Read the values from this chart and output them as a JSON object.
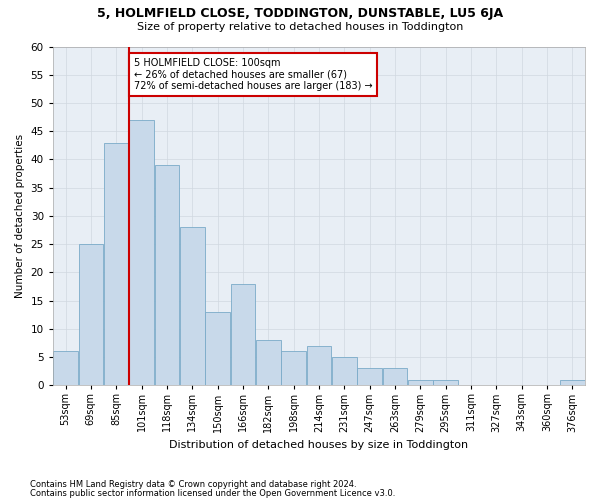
{
  "title": "5, HOLMFIELD CLOSE, TODDINGTON, DUNSTABLE, LU5 6JA",
  "subtitle": "Size of property relative to detached houses in Toddington",
  "xlabel": "Distribution of detached houses by size in Toddington",
  "ylabel": "Number of detached properties",
  "bar_values": [
    6,
    25,
    43,
    47,
    39,
    28,
    13,
    18,
    8,
    6,
    7,
    5,
    3,
    3,
    1,
    1,
    0,
    0,
    0,
    0,
    1
  ],
  "x_labels": [
    "53sqm",
    "69sqm",
    "85sqm",
    "101sqm",
    "118sqm",
    "134sqm",
    "150sqm",
    "166sqm",
    "182sqm",
    "198sqm",
    "214sqm",
    "231sqm",
    "247sqm",
    "263sqm",
    "279sqm",
    "295sqm",
    "311sqm",
    "327sqm",
    "343sqm",
    "360sqm",
    "376sqm"
  ],
  "bar_color": "#c8d9ea",
  "bar_edge_color": "#7aaac8",
  "grid_color": "#d0d8e0",
  "bg_color": "#e8eef5",
  "red_line_x": 3.0,
  "annotation_text": "5 HOLMFIELD CLOSE: 100sqm\n← 26% of detached houses are smaller (67)\n72% of semi-detached houses are larger (183) →",
  "annotation_box_color": "#ffffff",
  "annotation_box_edge": "#cc0000",
  "red_line_color": "#cc0000",
  "ylim": [
    0,
    60
  ],
  "yticks": [
    0,
    5,
    10,
    15,
    20,
    25,
    30,
    35,
    40,
    45,
    50,
    55,
    60
  ],
  "title_fontsize": 9,
  "subtitle_fontsize": 8,
  "footnote1": "Contains HM Land Registry data © Crown copyright and database right 2024.",
  "footnote2": "Contains public sector information licensed under the Open Government Licence v3.0."
}
